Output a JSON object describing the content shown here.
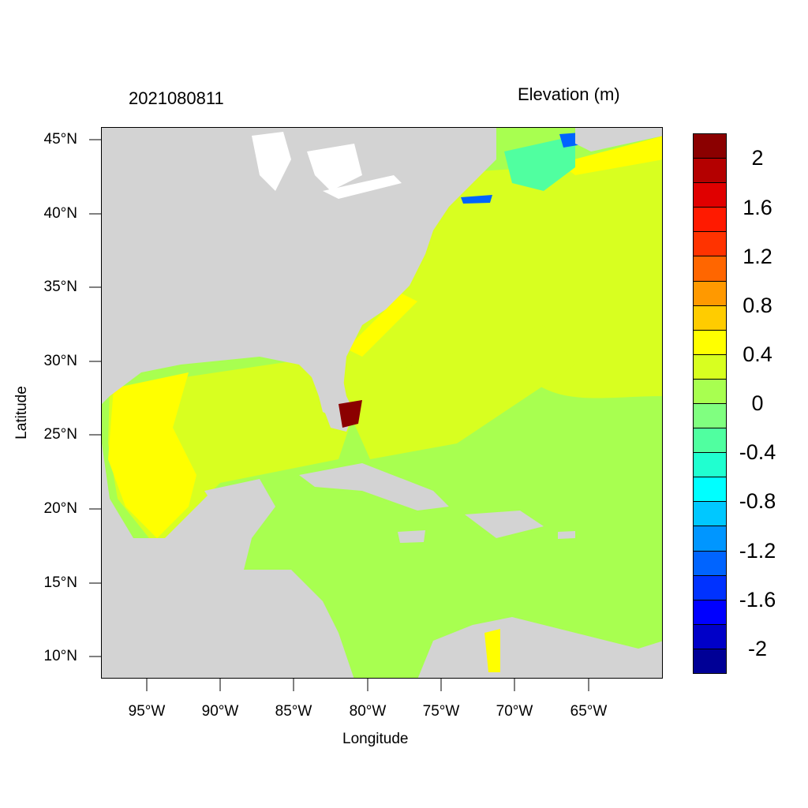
{
  "title": {
    "timestamp": "2021080811",
    "variable": "Elevation (m)"
  },
  "axes": {
    "xlabel": "Longitude",
    "ylabel": "Latitude",
    "xticks": [
      "95°W",
      "90°W",
      "85°W",
      "80°W",
      "75°W",
      "70°W",
      "65°W"
    ],
    "yticks": [
      "45°N",
      "40°N",
      "35°N",
      "30°N",
      "25°N",
      "20°N",
      "15°N",
      "10°N"
    ]
  },
  "colorbar": {
    "colors": [
      "#000096",
      "#0000c8",
      "#0000ff",
      "#0032ff",
      "#0064ff",
      "#0096ff",
      "#00c8ff",
      "#00ffff",
      "#20ffd0",
      "#50ffa0",
      "#80ff80",
      "#a8ff50",
      "#d8ff20",
      "#ffff00",
      "#ffcc00",
      "#ff9900",
      "#ff6600",
      "#ff3300",
      "#ff1a00",
      "#e00000",
      "#b40000",
      "#8b0000"
    ],
    "labels": [
      "2",
      "1.6",
      "1.2",
      "0.8",
      "0.4",
      "0",
      "-0.4",
      "-0.8",
      "-1.2",
      "-1.6",
      "-2"
    ]
  },
  "map_colors": {
    "land": "#d3d3d3",
    "sea_main": "#a8ff50",
    "sea_gulf": "#d8ff20",
    "sea_high": "#ffff00",
    "surge": "#8b0000"
  }
}
